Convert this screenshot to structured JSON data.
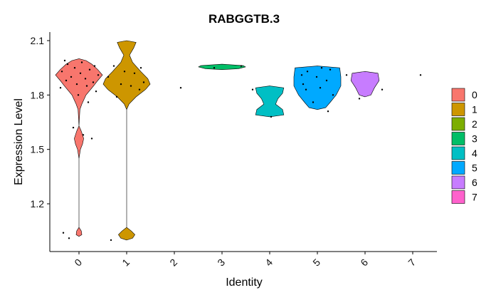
{
  "chart_data": {
    "type": "violin",
    "title": "RABGGTB.3",
    "xlabel": "Identity",
    "ylabel": "Expression Level",
    "categories": [
      "0",
      "1",
      "2",
      "3",
      "4",
      "5",
      "6",
      "7"
    ],
    "colors": [
      "#F8766D",
      "#CD9600",
      "#7CAE00",
      "#00BE67",
      "#00BFC4",
      "#00A9FF",
      "#C77CFF",
      "#FF61CC"
    ],
    "ylim": [
      1.0,
      2.12
    ],
    "yticks": [
      1.2,
      1.5,
      1.8,
      2.1
    ],
    "ytick_labels": [
      "1.2",
      "1.5",
      "1.8",
      "2.1"
    ],
    "grid": false,
    "legend_position": "right",
    "violins": [
      {
        "category": "0",
        "profile": [
          [
            1.02,
            0
          ],
          [
            1.03,
            0.12
          ],
          [
            1.05,
            0.1
          ],
          [
            1.07,
            0
          ],
          [
            1.45,
            0
          ],
          [
            1.5,
            0.06
          ],
          [
            1.53,
            0.15
          ],
          [
            1.56,
            0.2
          ],
          [
            1.6,
            0.1
          ],
          [
            1.63,
            0
          ],
          [
            1.72,
            0.04
          ],
          [
            1.75,
            0.12
          ],
          [
            1.8,
            0.3
          ],
          [
            1.85,
            0.62
          ],
          [
            1.88,
            0.8
          ],
          [
            1.91,
            1.0
          ],
          [
            1.94,
            0.8
          ],
          [
            1.97,
            0.55
          ],
          [
            1.99,
            0.3
          ],
          [
            2.0,
            0
          ]
        ]
      },
      {
        "category": "1",
        "profile": [
          [
            1.0,
            0
          ],
          [
            1.01,
            0.25
          ],
          [
            1.03,
            0.35
          ],
          [
            1.05,
            0.2
          ],
          [
            1.07,
            0
          ],
          [
            1.72,
            0
          ],
          [
            1.75,
            0.1
          ],
          [
            1.79,
            0.4
          ],
          [
            1.83,
            0.8
          ],
          [
            1.86,
            1.0
          ],
          [
            1.89,
            0.9
          ],
          [
            1.93,
            0.6
          ],
          [
            1.98,
            0.25
          ],
          [
            2.02,
            0.12
          ],
          [
            2.06,
            0.3
          ],
          [
            2.09,
            0.4
          ],
          [
            2.1,
            0
          ]
        ]
      },
      {
        "category": "3",
        "profile": [
          [
            1.94,
            0
          ],
          [
            1.945,
            0.7
          ],
          [
            1.955,
            1.0
          ],
          [
            1.962,
            0.9
          ],
          [
            1.97,
            0
          ]
        ]
      },
      {
        "category": "4",
        "profile": [
          [
            1.68,
            0
          ],
          [
            1.69,
            0.6
          ],
          [
            1.72,
            0.55
          ],
          [
            1.75,
            0.25
          ],
          [
            1.78,
            0.35
          ],
          [
            1.81,
            0.55
          ],
          [
            1.84,
            0.6
          ],
          [
            1.85,
            0
          ]
        ]
      },
      {
        "category": "5",
        "profile": [
          [
            1.72,
            0
          ],
          [
            1.73,
            0.35
          ],
          [
            1.76,
            0.55
          ],
          [
            1.8,
            0.8
          ],
          [
            1.85,
            1.0
          ],
          [
            1.9,
            1.0
          ],
          [
            1.95,
            0.95
          ],
          [
            1.96,
            0
          ]
        ]
      },
      {
        "category": "6",
        "profile": [
          [
            1.79,
            0
          ],
          [
            1.8,
            0.25
          ],
          [
            1.84,
            0.4
          ],
          [
            1.88,
            0.6
          ],
          [
            1.92,
            0.55
          ],
          [
            1.93,
            0
          ]
        ]
      }
    ],
    "points": [
      {
        "category": "0",
        "y": 1.04
      },
      {
        "category": "0",
        "y": 1.01
      },
      {
        "category": "0",
        "y": 1.56
      },
      {
        "category": "0",
        "y": 1.58
      },
      {
        "category": "0",
        "y": 1.62
      },
      {
        "category": "0",
        "y": 1.82
      },
      {
        "category": "0",
        "y": 1.84
      },
      {
        "category": "0",
        "y": 1.85
      },
      {
        "category": "0",
        "y": 1.86
      },
      {
        "category": "0",
        "y": 1.87
      },
      {
        "category": "0",
        "y": 1.88
      },
      {
        "category": "0",
        "y": 1.89
      },
      {
        "category": "0",
        "y": 1.9
      },
      {
        "category": "0",
        "y": 1.91
      },
      {
        "category": "0",
        "y": 1.92
      },
      {
        "category": "0",
        "y": 1.93
      },
      {
        "category": "0",
        "y": 1.94
      },
      {
        "category": "0",
        "y": 1.95
      },
      {
        "category": "0",
        "y": 1.96
      },
      {
        "category": "0",
        "y": 1.97
      },
      {
        "category": "0",
        "y": 1.98
      },
      {
        "category": "0",
        "y": 1.99
      },
      {
        "category": "0",
        "y": 1.76
      },
      {
        "category": "0",
        "y": 1.8
      },
      {
        "category": "1",
        "y": 1.0
      },
      {
        "category": "1",
        "y": 1.79
      },
      {
        "category": "1",
        "y": 1.83
      },
      {
        "category": "1",
        "y": 1.85
      },
      {
        "category": "1",
        "y": 1.86
      },
      {
        "category": "1",
        "y": 1.87
      },
      {
        "category": "1",
        "y": 1.9
      },
      {
        "category": "1",
        "y": 1.92
      },
      {
        "category": "1",
        "y": 1.93
      },
      {
        "category": "1",
        "y": 1.95
      },
      {
        "category": "1",
        "y": 1.96
      },
      {
        "category": "2",
        "y": 1.84
      },
      {
        "category": "3",
        "y": 1.95
      },
      {
        "category": "3",
        "y": 1.96
      },
      {
        "category": "4",
        "y": 1.68
      },
      {
        "category": "4",
        "y": 1.83
      },
      {
        "category": "5",
        "y": 1.71
      },
      {
        "category": "5",
        "y": 1.76
      },
      {
        "category": "5",
        "y": 1.8
      },
      {
        "category": "5",
        "y": 1.83
      },
      {
        "category": "5",
        "y": 1.84
      },
      {
        "category": "5",
        "y": 1.86
      },
      {
        "category": "5",
        "y": 1.88
      },
      {
        "category": "5",
        "y": 1.9
      },
      {
        "category": "5",
        "y": 1.91
      },
      {
        "category": "5",
        "y": 1.93
      },
      {
        "category": "5",
        "y": 1.94
      },
      {
        "category": "5",
        "y": 1.95
      },
      {
        "category": "6",
        "y": 1.78
      },
      {
        "category": "6",
        "y": 1.83
      },
      {
        "category": "6",
        "y": 1.91
      },
      {
        "category": "7",
        "y": 1.91
      }
    ]
  }
}
